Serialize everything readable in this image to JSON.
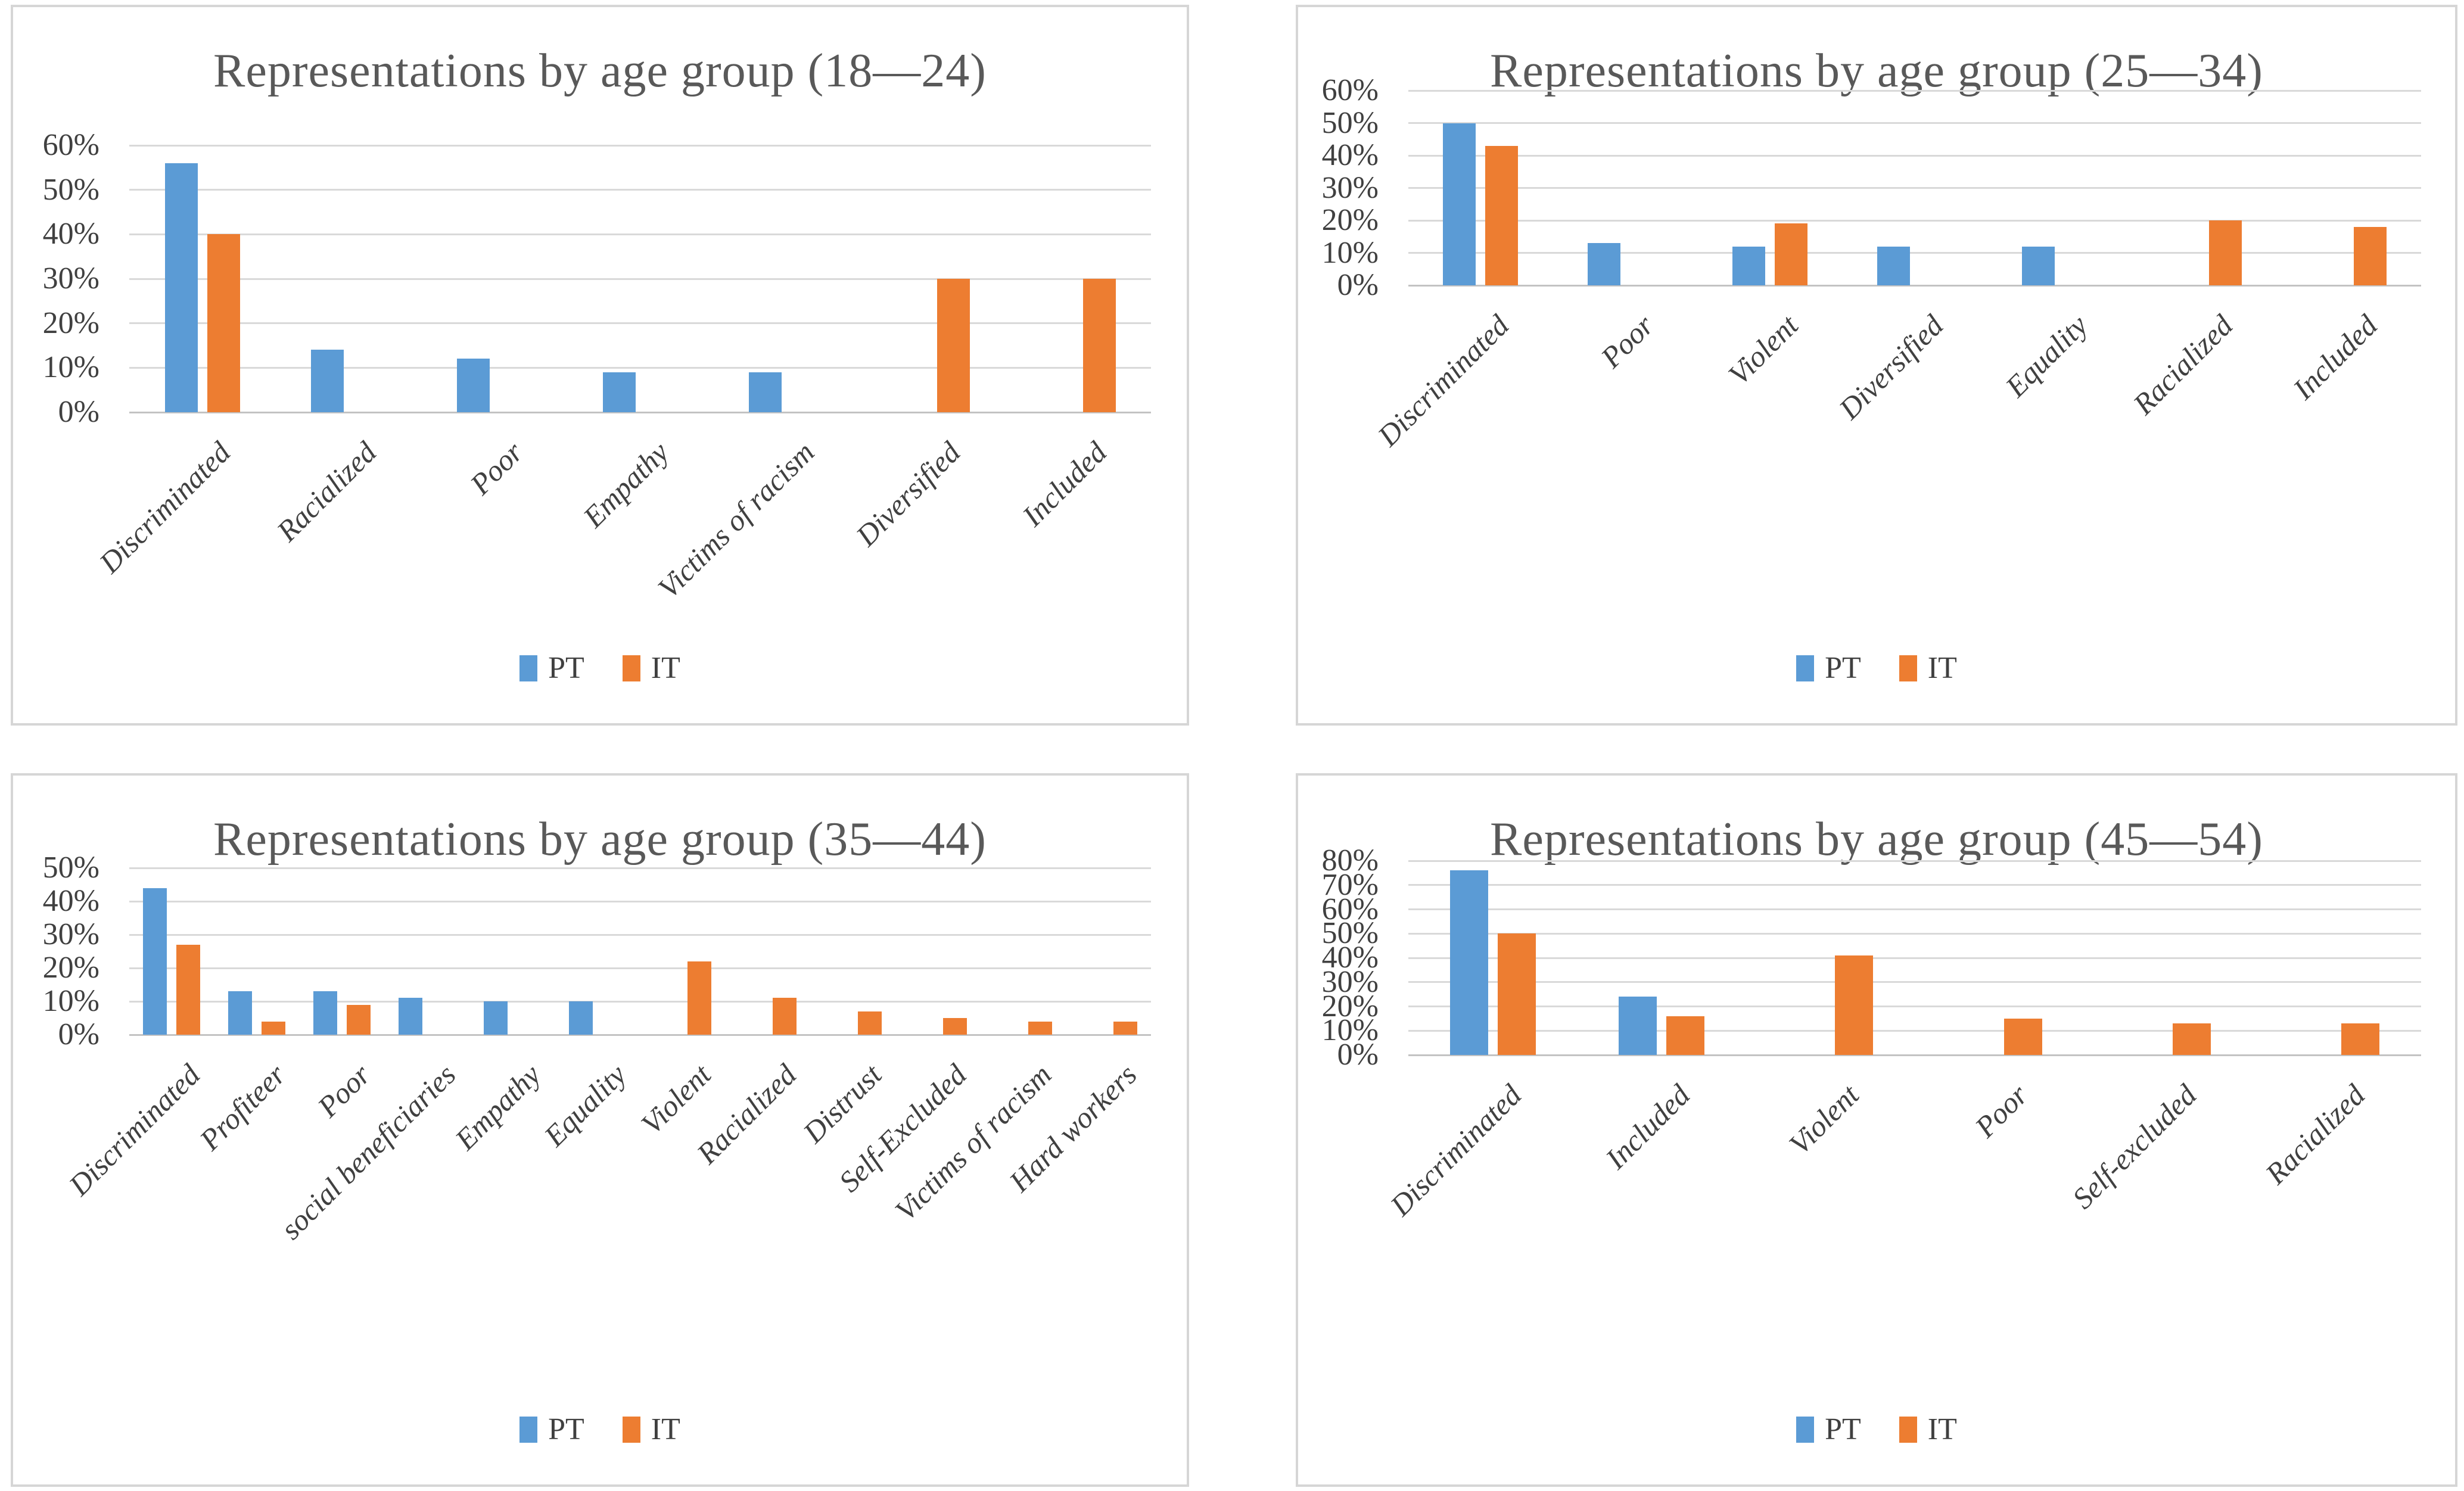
{
  "colors": {
    "pt_blue": "#5B9BD5",
    "it_orange": "#ED7D31",
    "title_gray": "#595959",
    "label_gray": "#404040",
    "gridline_gray": "#d9d9d9",
    "panel_border_gray": "#d6d6d6"
  },
  "chart_data": [
    {
      "type": "bar",
      "title": "Representations by age group (18—24)",
      "categories": [
        "Discriminated",
        "Racialized",
        "Poor",
        "Empathy",
        "Victims of racism",
        "Diversified",
        "Included"
      ],
      "series": [
        {
          "name": "PT",
          "color": "#5B9BD5",
          "values": [
            56,
            14,
            12,
            9,
            9,
            null,
            null
          ]
        },
        {
          "name": "IT",
          "color": "#ED7D31",
          "values": [
            40,
            null,
            null,
            null,
            null,
            30,
            30
          ]
        }
      ],
      "ylim": [
        0,
        60
      ],
      "yticks": [
        "0%",
        "10%",
        "20%",
        "30%",
        "40%",
        "50%",
        "60%"
      ],
      "ylabel": "",
      "xlabel": "",
      "grid": "horizontal",
      "legend_position": "bottom-center"
    },
    {
      "type": "bar",
      "title": "Representations by age group (25—34)",
      "categories": [
        "Discriminated",
        "Poor",
        "Violent",
        "Diversified",
        "Equality",
        "Racialized",
        "Included"
      ],
      "series": [
        {
          "name": "PT",
          "color": "#5B9BD5",
          "values": [
            50,
            13,
            12,
            12,
            12,
            null,
            null
          ]
        },
        {
          "name": "IT",
          "color": "#ED7D31",
          "values": [
            43,
            null,
            19,
            null,
            null,
            20,
            18
          ]
        }
      ],
      "ylim": [
        0,
        60
      ],
      "yticks": [
        "0%",
        "10%",
        "20%",
        "30%",
        "40%",
        "50%",
        "60%"
      ],
      "ylabel": "",
      "xlabel": "",
      "grid": "horizontal",
      "legend_position": "bottom-center"
    },
    {
      "type": "bar",
      "title": "Representations by age group (35—44)",
      "categories": [
        "Discriminated",
        "Profiteer",
        "Poor",
        "social beneficiaries",
        "Empathy",
        "Equality",
        "Violent",
        "Racialized",
        "Distrust",
        "Self-Excluded",
        "Victims of racism",
        "Hard workers"
      ],
      "series": [
        {
          "name": "PT",
          "color": "#5B9BD5",
          "values": [
            44,
            13,
            13,
            11,
            10,
            10,
            null,
            null,
            null,
            null,
            null,
            null
          ]
        },
        {
          "name": "IT",
          "color": "#ED7D31",
          "values": [
            27,
            4,
            9,
            null,
            null,
            null,
            22,
            11,
            7,
            5,
            4,
            4
          ]
        }
      ],
      "ylim": [
        0,
        50
      ],
      "yticks": [
        "0%",
        "10%",
        "20%",
        "30%",
        "40%",
        "50%"
      ],
      "ylabel": "",
      "xlabel": "",
      "grid": "horizontal",
      "legend_position": "bottom-center"
    },
    {
      "type": "bar",
      "title": "Representations by age group (45—54)",
      "categories": [
        "Discriminated",
        "Included",
        "Violent",
        "Poor",
        "Self-excluded",
        "Racialized"
      ],
      "series": [
        {
          "name": "PT",
          "color": "#5B9BD5",
          "values": [
            76,
            24,
            null,
            null,
            null,
            null
          ]
        },
        {
          "name": "IT",
          "color": "#ED7D31",
          "values": [
            50,
            16,
            41,
            15,
            13,
            13
          ]
        }
      ],
      "ylim": [
        0,
        80
      ],
      "yticks": [
        "0%",
        "10%",
        "20%",
        "30%",
        "40%",
        "50%",
        "60%",
        "70%",
        "80%"
      ],
      "ylabel": "",
      "xlabel": "",
      "grid": "horizontal",
      "legend_position": "bottom-center"
    }
  ]
}
